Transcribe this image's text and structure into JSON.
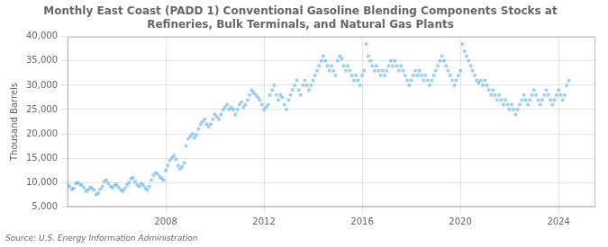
{
  "chart_data": {
    "type": "scatter",
    "title": "Monthly East Coast (PADD 1) Conventional Gasoline Blending Components Stocks at\nRefineries, Bulk Terminals, and Natural Gas Plants",
    "ylabel": "Thousand Barrels",
    "annotation": "Source: U.S. Energy Information Administration",
    "marker": "square",
    "grid": true,
    "xlim": [
      2004.0,
      2025.5
    ],
    "xticks": [
      2008,
      2012,
      2016,
      2020,
      2024
    ],
    "ylim": [
      5000,
      40000
    ],
    "yticks": [
      {
        "value": 5000,
        "label": "5,000"
      },
      {
        "value": 10000,
        "label": "10,000"
      },
      {
        "value": 15000,
        "label": "15,000"
      },
      {
        "value": 20000,
        "label": "20,000"
      },
      {
        "value": 25000,
        "label": "25,000"
      },
      {
        "value": 30000,
        "label": "30,000"
      },
      {
        "value": 35000,
        "label": "35,000"
      },
      {
        "value": 40000,
        "label": "40,000"
      }
    ],
    "x": [
      2004.0,
      2004.083,
      2004.167,
      2004.25,
      2004.333,
      2004.417,
      2004.5,
      2004.583,
      2004.667,
      2004.75,
      2004.833,
      2004.917,
      2005.0,
      2005.083,
      2005.167,
      2005.25,
      2005.333,
      2005.417,
      2005.5,
      2005.583,
      2005.667,
      2005.75,
      2005.833,
      2005.917,
      2006.0,
      2006.083,
      2006.167,
      2006.25,
      2006.333,
      2006.417,
      2006.5,
      2006.583,
      2006.667,
      2006.75,
      2006.833,
      2006.917,
      2007.0,
      2007.083,
      2007.167,
      2007.25,
      2007.333,
      2007.417,
      2007.5,
      2007.583,
      2007.667,
      2007.75,
      2007.833,
      2007.917,
      2008.0,
      2008.083,
      2008.167,
      2008.25,
      2008.333,
      2008.417,
      2008.5,
      2008.583,
      2008.667,
      2008.75,
      2008.833,
      2008.917,
      2009.0,
      2009.083,
      2009.167,
      2009.25,
      2009.333,
      2009.417,
      2009.5,
      2009.583,
      2009.667,
      2009.75,
      2009.833,
      2009.917,
      2010.0,
      2010.083,
      2010.167,
      2010.25,
      2010.333,
      2010.417,
      2010.5,
      2010.583,
      2010.667,
      2010.75,
      2010.833,
      2010.917,
      2011.0,
      2011.083,
      2011.167,
      2011.25,
      2011.333,
      2011.417,
      2011.5,
      2011.583,
      2011.667,
      2011.75,
      2011.833,
      2011.917,
      2012.0,
      2012.083,
      2012.167,
      2012.25,
      2012.333,
      2012.417,
      2012.5,
      2012.583,
      2012.667,
      2012.75,
      2012.833,
      2012.917,
      2013.0,
      2013.083,
      2013.167,
      2013.25,
      2013.333,
      2013.417,
      2013.5,
      2013.583,
      2013.667,
      2013.75,
      2013.833,
      2013.917,
      2014.0,
      2014.083,
      2014.167,
      2014.25,
      2014.333,
      2014.417,
      2014.5,
      2014.583,
      2014.667,
      2014.75,
      2014.833,
      2014.917,
      2015.0,
      2015.083,
      2015.167,
      2015.25,
      2015.333,
      2015.417,
      2015.5,
      2015.583,
      2015.667,
      2015.75,
      2015.833,
      2015.917,
      2016.0,
      2016.083,
      2016.167,
      2016.25,
      2016.333,
      2016.417,
      2016.5,
      2016.583,
      2016.667,
      2016.75,
      2016.833,
      2016.917,
      2017.0,
      2017.083,
      2017.167,
      2017.25,
      2017.333,
      2017.417,
      2017.5,
      2017.583,
      2017.667,
      2017.75,
      2017.833,
      2017.917,
      2018.0,
      2018.083,
      2018.167,
      2018.25,
      2018.333,
      2018.417,
      2018.5,
      2018.583,
      2018.667,
      2018.75,
      2018.833,
      2018.917,
      2019.0,
      2019.083,
      2019.167,
      2019.25,
      2019.333,
      2019.417,
      2019.5,
      2019.583,
      2019.667,
      2019.75,
      2019.833,
      2019.917,
      2020.0,
      2020.083,
      2020.167,
      2020.25,
      2020.333,
      2020.417,
      2020.5,
      2020.583,
      2020.667,
      2020.75,
      2020.833,
      2020.917,
      2021.0,
      2021.083,
      2021.167,
      2021.25,
      2021.333,
      2021.417,
      2021.5,
      2021.583,
      2021.667,
      2021.75,
      2021.833,
      2021.917,
      2022.0,
      2022.083,
      2022.167,
      2022.25,
      2022.333,
      2022.417,
      2022.5,
      2022.583,
      2022.667,
      2022.75,
      2022.833,
      2022.917,
      2023.0,
      2023.083,
      2023.167,
      2023.25,
      2023.333,
      2023.417,
      2023.5,
      2023.583,
      2023.667,
      2023.75,
      2023.833,
      2023.917,
      2024.0,
      2024.083,
      2024.167,
      2024.25,
      2024.333,
      2024.417
    ],
    "values": [
      9500,
      9200,
      8600,
      8800,
      9800,
      10000,
      9600,
      9400,
      8900,
      8200,
      8500,
      9000,
      8800,
      8400,
      7500,
      7800,
      8600,
      9200,
      10200,
      10500,
      9800,
      9200,
      8900,
      9400,
      9600,
      9000,
      8500,
      8200,
      8800,
      9500,
      10000,
      10800,
      11000,
      10200,
      9500,
      9200,
      9800,
      9400,
      8800,
      8500,
      9200,
      10500,
      11500,
      12000,
      11800,
      11200,
      10800,
      10500,
      12500,
      13500,
      14500,
      15000,
      15500,
      14800,
      13500,
      12800,
      13200,
      14000,
      17500,
      19000,
      19500,
      20000,
      19200,
      19800,
      21000,
      22000,
      22500,
      23000,
      22000,
      21500,
      22000,
      23000,
      24000,
      23500,
      23000,
      24000,
      25000,
      25500,
      26000,
      25000,
      25500,
      25000,
      24000,
      25000,
      26000,
      26500,
      25500,
      26000,
      27000,
      28000,
      29000,
      28500,
      28000,
      27500,
      27000,
      26000,
      25000,
      25500,
      26000,
      28000,
      29000,
      30000,
      28000,
      27000,
      28000,
      27500,
      26000,
      25000,
      27000,
      28000,
      29000,
      30000,
      31000,
      29000,
      28000,
      30000,
      31000,
      30000,
      29000,
      30000,
      31000,
      32000,
      33000,
      34000,
      35000,
      36000,
      35000,
      34000,
      33000,
      34000,
      33000,
      32000,
      35000,
      36000,
      35500,
      34000,
      33000,
      34000,
      33000,
      32000,
      31000,
      32000,
      31000,
      30000,
      32000,
      33000,
      38500,
      36000,
      35000,
      34000,
      33000,
      34000,
      33000,
      32000,
      33000,
      32000,
      33000,
      34000,
      35000,
      34000,
      35000,
      34000,
      33000,
      34000,
      33000,
      32000,
      31000,
      30000,
      31000,
      32000,
      33000,
      32000,
      33000,
      32000,
      31000,
      32000,
      31000,
      30000,
      31000,
      32000,
      33000,
      34000,
      35000,
      36000,
      35000,
      34000,
      33000,
      32000,
      31000,
      30000,
      31000,
      32000,
      33000,
      38500,
      37000,
      36000,
      35000,
      34000,
      33000,
      32000,
      31000,
      30500,
      31000,
      30000,
      31000,
      30000,
      29000,
      28000,
      29000,
      28000,
      27000,
      28000,
      27000,
      26000,
      27000,
      26000,
      25000,
      26000,
      25000,
      24000,
      25000,
      26000,
      27000,
      28000,
      27000,
      26000,
      27000,
      28000,
      29000,
      28000,
      27000,
      26000,
      27000,
      28000,
      29000,
      28000,
      27000,
      26000,
      27000,
      28000,
      29000,
      28000,
      27000,
      28000,
      30000,
      31000
    ]
  }
}
